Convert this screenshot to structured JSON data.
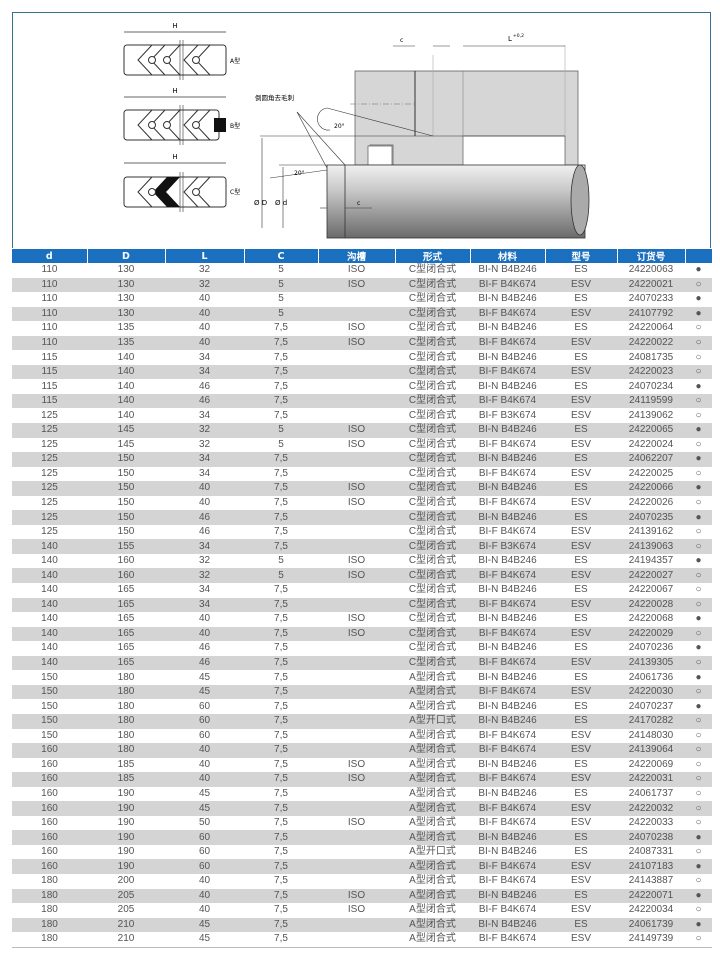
{
  "diagram": {
    "h_label": "H",
    "type_a": "A型",
    "type_b": "B型",
    "type_c": "C型",
    "chamfer_note": "倒圆角去毛刺",
    "angle": "20°",
    "c_label": "c",
    "l_label": "L",
    "l_tol": "+0,2",
    "od_label": "Ø D",
    "id_label": "Ø d"
  },
  "table": {
    "headers": [
      "d",
      "D",
      "L",
      "C",
      "沟槽",
      "形式",
      "材料",
      "型号",
      "订货号",
      ""
    ],
    "rows": [
      [
        "110",
        "130",
        "32",
        "5",
        "ISO",
        "C型闭合式",
        "BI-N B4B246",
        "ES",
        "24220063",
        "●"
      ],
      [
        "110",
        "130",
        "32",
        "5",
        "ISO",
        "C型闭合式",
        "BI-F B4K674",
        "ESV",
        "24220021",
        "○"
      ],
      [
        "110",
        "130",
        "40",
        "5",
        "",
        "C型闭合式",
        "BI-N B4B246",
        "ES",
        "24070233",
        "●"
      ],
      [
        "110",
        "130",
        "40",
        "5",
        "",
        "C型闭合式",
        "BI-F B4K674",
        "ESV",
        "24107792",
        "●"
      ],
      [
        "110",
        "135",
        "40",
        "7,5",
        "ISO",
        "C型闭合式",
        "BI-N B4B246",
        "ES",
        "24220064",
        "○"
      ],
      [
        "110",
        "135",
        "40",
        "7,5",
        "ISO",
        "C型闭合式",
        "BI-F B4K674",
        "ESV",
        "24220022",
        "○"
      ],
      [
        "115",
        "140",
        "34",
        "7,5",
        "",
        "C型闭合式",
        "BI-N B4B246",
        "ES",
        "24081735",
        "○"
      ],
      [
        "115",
        "140",
        "34",
        "7,5",
        "",
        "C型闭合式",
        "BI-F B4K674",
        "ESV",
        "24220023",
        "○"
      ],
      [
        "115",
        "140",
        "46",
        "7,5",
        "",
        "C型闭合式",
        "BI-N B4B246",
        "ES",
        "24070234",
        "●"
      ],
      [
        "115",
        "140",
        "46",
        "7,5",
        "",
        "C型闭合式",
        "BI-F B4K674",
        "ESV",
        "24119599",
        "○"
      ],
      [
        "125",
        "140",
        "34",
        "7,5",
        "",
        "C型闭合式",
        "BI-F B3K674",
        "ESV",
        "24139062",
        "○"
      ],
      [
        "125",
        "145",
        "32",
        "5",
        "ISO",
        "C型闭合式",
        "BI-N B4B246",
        "ES",
        "24220065",
        "●"
      ],
      [
        "125",
        "145",
        "32",
        "5",
        "ISO",
        "C型闭合式",
        "BI-F B4K674",
        "ESV",
        "24220024",
        "○"
      ],
      [
        "125",
        "150",
        "34",
        "7,5",
        "",
        "C型闭合式",
        "BI-N B4B246",
        "ES",
        "24062207",
        "●"
      ],
      [
        "125",
        "150",
        "34",
        "7,5",
        "",
        "C型闭合式",
        "BI-F B4K674",
        "ESV",
        "24220025",
        "○"
      ],
      [
        "125",
        "150",
        "40",
        "7,5",
        "ISO",
        "C型闭合式",
        "BI-N B4B246",
        "ES",
        "24220066",
        "●"
      ],
      [
        "125",
        "150",
        "40",
        "7,5",
        "ISO",
        "C型闭合式",
        "BI-F B4K674",
        "ESV",
        "24220026",
        "○"
      ],
      [
        "125",
        "150",
        "46",
        "7,5",
        "",
        "C型闭合式",
        "BI-N B4B246",
        "ES",
        "24070235",
        "●"
      ],
      [
        "125",
        "150",
        "46",
        "7,5",
        "",
        "C型闭合式",
        "BI-F B4K674",
        "ESV",
        "24139162",
        "○"
      ],
      [
        "140",
        "155",
        "34",
        "7,5",
        "",
        "C型闭合式",
        "BI-F B3K674",
        "ESV",
        "24139063",
        "○"
      ],
      [
        "140",
        "160",
        "32",
        "5",
        "ISO",
        "C型闭合式",
        "BI-N B4B246",
        "ES",
        "24194357",
        "●"
      ],
      [
        "140",
        "160",
        "32",
        "5",
        "ISO",
        "C型闭合式",
        "BI-F B4K674",
        "ESV",
        "24220027",
        "○"
      ],
      [
        "140",
        "165",
        "34",
        "7,5",
        "",
        "C型闭合式",
        "BI-N B4B246",
        "ES",
        "24220067",
        "○"
      ],
      [
        "140",
        "165",
        "34",
        "7,5",
        "",
        "C型闭合式",
        "BI-F B4K674",
        "ESV",
        "24220028",
        "○"
      ],
      [
        "140",
        "165",
        "40",
        "7,5",
        "ISO",
        "C型闭合式",
        "BI-N B4B246",
        "ES",
        "24220068",
        "●"
      ],
      [
        "140",
        "165",
        "40",
        "7,5",
        "ISO",
        "C型闭合式",
        "BI-F B4K674",
        "ESV",
        "24220029",
        "○"
      ],
      [
        "140",
        "165",
        "46",
        "7,5",
        "",
        "C型闭合式",
        "BI-N B4B246",
        "ES",
        "24070236",
        "●"
      ],
      [
        "140",
        "165",
        "46",
        "7,5",
        "",
        "C型闭合式",
        "BI-F B4K674",
        "ESV",
        "24139305",
        "○"
      ],
      [
        "150",
        "180",
        "45",
        "7,5",
        "",
        "A型闭合式",
        "BI-N B4B246",
        "ES",
        "24061736",
        "●"
      ],
      [
        "150",
        "180",
        "45",
        "7,5",
        "",
        "A型闭合式",
        "BI-F B4K674",
        "ESV",
        "24220030",
        "○"
      ],
      [
        "150",
        "180",
        "60",
        "7,5",
        "",
        "A型闭合式",
        "BI-N B4B246",
        "ES",
        "24070237",
        "●"
      ],
      [
        "150",
        "180",
        "60",
        "7,5",
        "",
        "A型开口式",
        "BI-N B4B246",
        "ES",
        "24170282",
        "○"
      ],
      [
        "150",
        "180",
        "60",
        "7,5",
        "",
        "A型闭合式",
        "BI-F B4K674",
        "ESV",
        "24148030",
        "○"
      ],
      [
        "160",
        "180",
        "40",
        "7,5",
        "",
        "A型闭合式",
        "BI-F B4K674",
        "ESV",
        "24139064",
        "○"
      ],
      [
        "160",
        "185",
        "40",
        "7,5",
        "ISO",
        "A型闭合式",
        "BI-N B4B246",
        "ES",
        "24220069",
        "○"
      ],
      [
        "160",
        "185",
        "40",
        "7,5",
        "ISO",
        "A型闭合式",
        "BI-F B4K674",
        "ESV",
        "24220031",
        "○"
      ],
      [
        "160",
        "190",
        "45",
        "7,5",
        "",
        "A型闭合式",
        "BI-N B4B246",
        "ES",
        "24061737",
        "○"
      ],
      [
        "160",
        "190",
        "45",
        "7,5",
        "",
        "A型闭合式",
        "BI-F B4K674",
        "ESV",
        "24220032",
        "○"
      ],
      [
        "160",
        "190",
        "50",
        "7,5",
        "ISO",
        "A型闭合式",
        "BI-F B4K674",
        "ESV",
        "24220033",
        "○"
      ],
      [
        "160",
        "190",
        "60",
        "7,5",
        "",
        "A型闭合式",
        "BI-N B4B246",
        "ES",
        "24070238",
        "●"
      ],
      [
        "160",
        "190",
        "60",
        "7,5",
        "",
        "A型开口式",
        "BI-N B4B246",
        "ES",
        "24087331",
        "○"
      ],
      [
        "160",
        "190",
        "60",
        "7,5",
        "",
        "A型闭合式",
        "BI-F B4K674",
        "ESV",
        "24107183",
        "●"
      ],
      [
        "180",
        "200",
        "40",
        "7,5",
        "",
        "A型闭合式",
        "BI-F B4K674",
        "ESV",
        "24143887",
        "○"
      ],
      [
        "180",
        "205",
        "40",
        "7,5",
        "ISO",
        "A型闭合式",
        "BI-N B4B246",
        "ES",
        "24220071",
        "●"
      ],
      [
        "180",
        "205",
        "40",
        "7,5",
        "ISO",
        "A型闭合式",
        "BI-F B4K674",
        "ESV",
        "24220034",
        "○"
      ],
      [
        "180",
        "210",
        "45",
        "7,5",
        "",
        "A型闭合式",
        "BI-N B4B246",
        "ES",
        "24061739",
        "●"
      ],
      [
        "180",
        "210",
        "45",
        "7,5",
        "",
        "A型闭合式",
        "BI-F B4K674",
        "ESV",
        "24149739",
        "○"
      ]
    ]
  },
  "colors": {
    "header_bg": "#1a6fbf",
    "stripe": "#d4d4d4",
    "frame": "#3a6f8f"
  }
}
